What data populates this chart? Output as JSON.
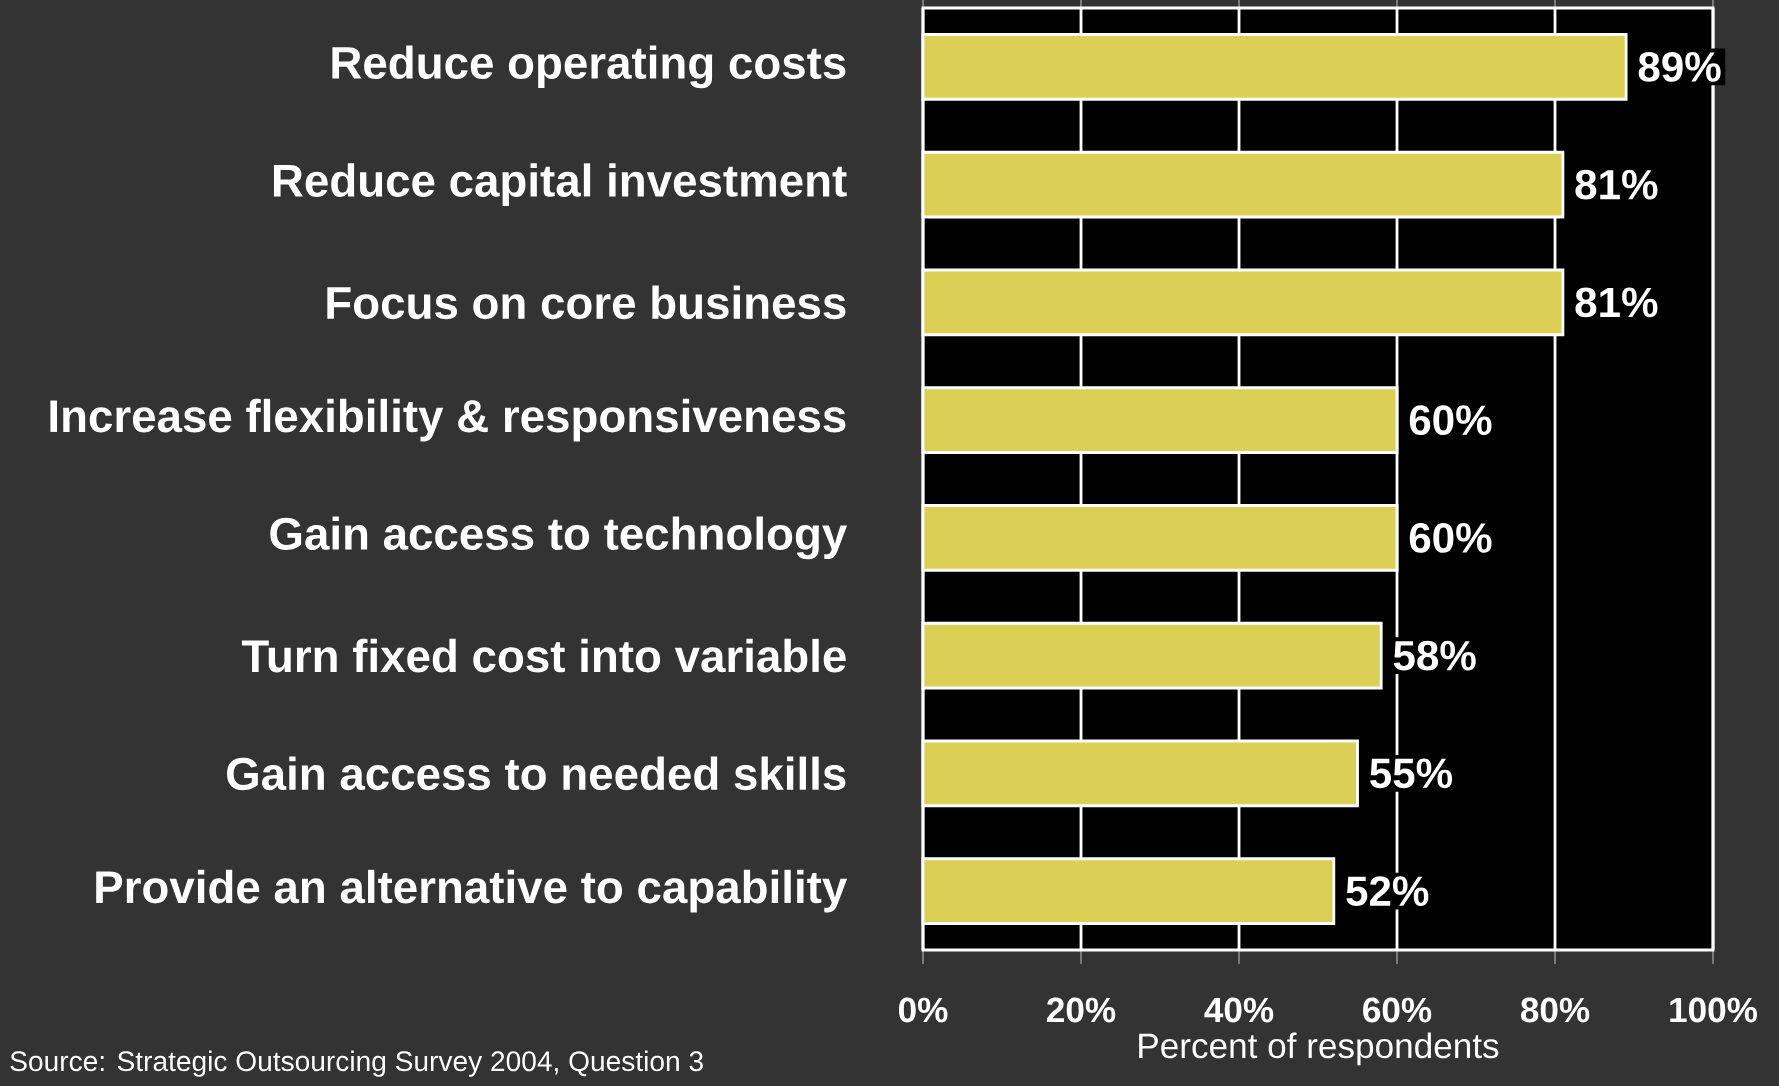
{
  "chart_data": {
    "type": "bar",
    "orientation": "horizontal",
    "xlabel": "Percent of respondents",
    "categories": [
      "Reduce operating costs",
      "Reduce capital investment",
      "Focus on core business",
      "Increase flexibility & responsiveness",
      "Gain access to technology",
      "Turn fixed cost into variable",
      "Gain access to needed skills",
      "Provide an alternative to capability"
    ],
    "values": [
      89,
      81,
      81,
      60,
      60,
      58,
      55,
      52
    ],
    "value_labels": [
      "89%",
      "81%",
      "81%",
      "60%",
      "60%",
      "58%",
      "55%",
      "52%"
    ],
    "color": "#dccf55",
    "xlim": [
      0,
      100
    ],
    "xticks": [
      {
        "value": 0,
        "label": "0%"
      },
      {
        "value": 20,
        "label": "20%"
      },
      {
        "value": 40,
        "label": "40%"
      },
      {
        "value": 60,
        "label": "60%"
      },
      {
        "value": 80,
        "label": "80%"
      },
      {
        "value": 100,
        "label": "100%"
      }
    ],
    "grid": "x",
    "annotations": [
      "Source: Strategic Outsourcing Survey 2004, Question 3"
    ]
  }
}
